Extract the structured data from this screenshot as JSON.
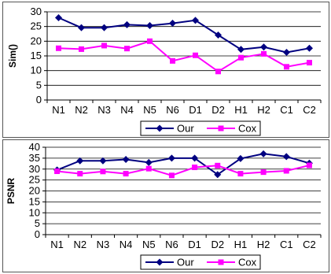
{
  "chart_data": [
    {
      "type": "line",
      "categories": [
        "N1",
        "N2",
        "N3",
        "N4",
        "N5",
        "N6",
        "D1",
        "D2",
        "H1",
        "H2",
        "C1",
        "C2"
      ],
      "series": [
        {
          "name": "Our",
          "color": "#000080",
          "marker": "diamond",
          "values": [
            28.0,
            24.6,
            24.6,
            25.6,
            25.3,
            26.1,
            27.1,
            22.1,
            17.2,
            18.0,
            16.2,
            17.6
          ]
        },
        {
          "name": "Cox",
          "color": "#ff00ff",
          "marker": "square",
          "values": [
            17.6,
            17.3,
            18.5,
            17.5,
            20.0,
            13.3,
            15.2,
            9.7,
            14.4,
            15.7,
            11.3,
            12.7
          ]
        }
      ],
      "xlabel": "",
      "ylabel": "Sim()",
      "ylim": [
        0,
        30
      ],
      "yticks": [
        "0",
        "5",
        "10",
        "15",
        "20",
        "25",
        "30"
      ],
      "grid": true,
      "legend": "bottom"
    },
    {
      "type": "line",
      "categories": [
        "N1",
        "N2",
        "N3",
        "N4",
        "N5",
        "N6",
        "D1",
        "D2",
        "H1",
        "H2",
        "C1",
        "C2"
      ],
      "series": [
        {
          "name": "Our",
          "color": "#000080",
          "marker": "diamond",
          "values": [
            29.6,
            33.8,
            33.8,
            34.4,
            33.0,
            35.0,
            35.0,
            27.5,
            34.8,
            37.0,
            35.7,
            32.7
          ]
        },
        {
          "name": "Cox",
          "color": "#ff00ff",
          "marker": "square",
          "values": [
            29.0,
            27.9,
            28.9,
            27.9,
            30.2,
            27.1,
            30.8,
            31.6,
            27.9,
            28.6,
            29.2,
            31.7
          ]
        }
      ],
      "xlabel": "",
      "ylabel": "PSNR",
      "ylim": [
        0,
        40
      ],
      "yticks": [
        "0",
        "5",
        "10",
        "15",
        "20",
        "25",
        "30",
        "35",
        "40"
      ],
      "grid": true,
      "legend": "bottom"
    }
  ]
}
